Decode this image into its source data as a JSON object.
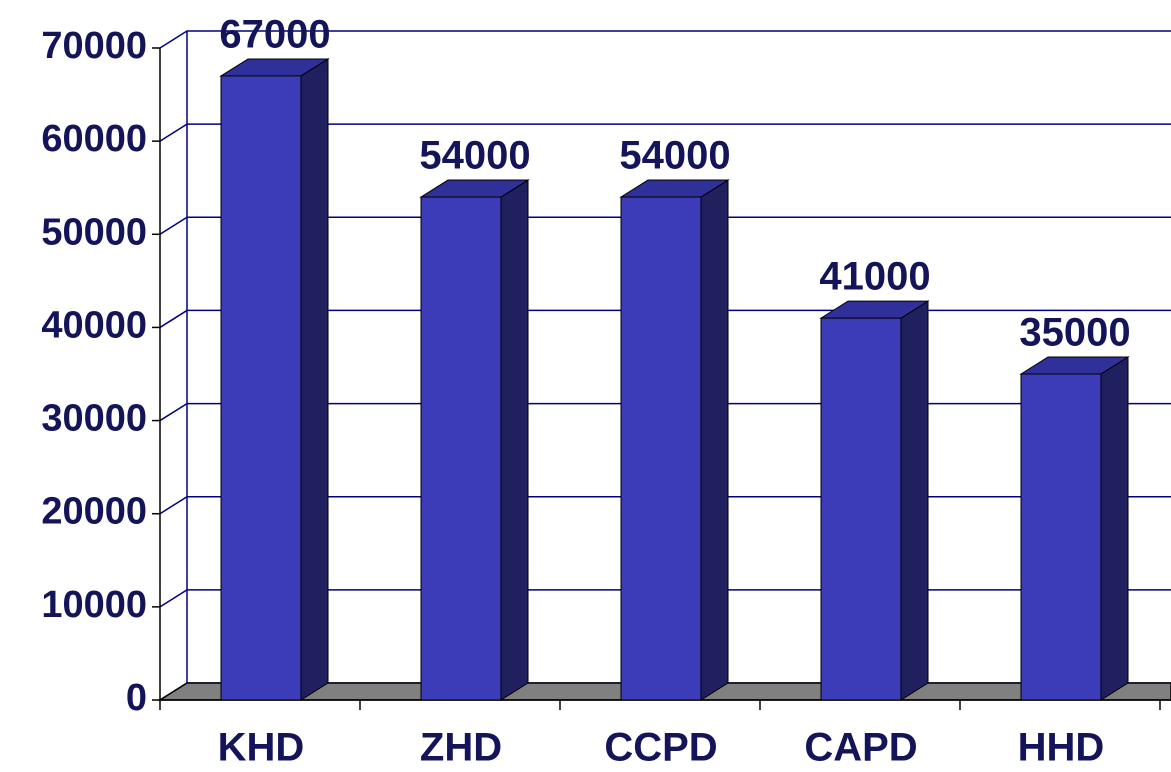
{
  "chart_data": {
    "type": "bar",
    "categories": [
      "KHD",
      "ZHD",
      "CCPD",
      "CAPD",
      "HHD"
    ],
    "values": [
      67000,
      54000,
      54000,
      41000,
      35000
    ],
    "color": "#3c3cb9",
    "ylim": [
      0,
      70000
    ],
    "yticks": [
      0,
      10000,
      20000,
      30000,
      40000,
      50000,
      60000,
      70000
    ],
    "grid": true
  }
}
